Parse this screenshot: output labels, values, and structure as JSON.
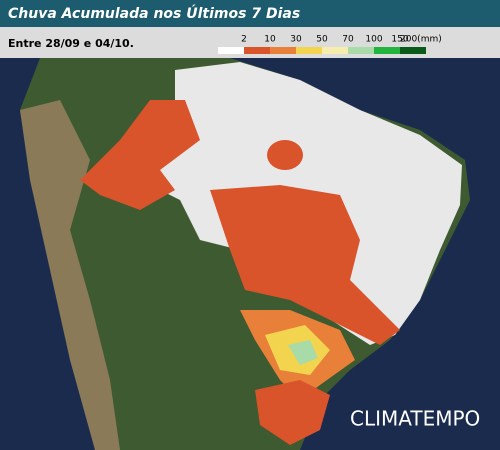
{
  "header": {
    "title": "Chuva Acumulada nos Últimos 7 Dias",
    "period": "Entre 28/09 e 04/10."
  },
  "legend": [
    {
      "label": "2",
      "color": "#ffffff"
    },
    {
      "label": "10",
      "color": "#d9532b"
    },
    {
      "label": "30",
      "color": "#e8803a"
    },
    {
      "label": "50",
      "color": "#f2d44e"
    },
    {
      "label": "70",
      "color": "#f6ecae"
    },
    {
      "label": "100",
      "color": "#a8dba8"
    },
    {
      "label": "150",
      "color": "#22b43c"
    },
    {
      "label": "200(mm)",
      "color": "#0a5a1a"
    }
  ],
  "brand": "CLIMATEMPO"
}
